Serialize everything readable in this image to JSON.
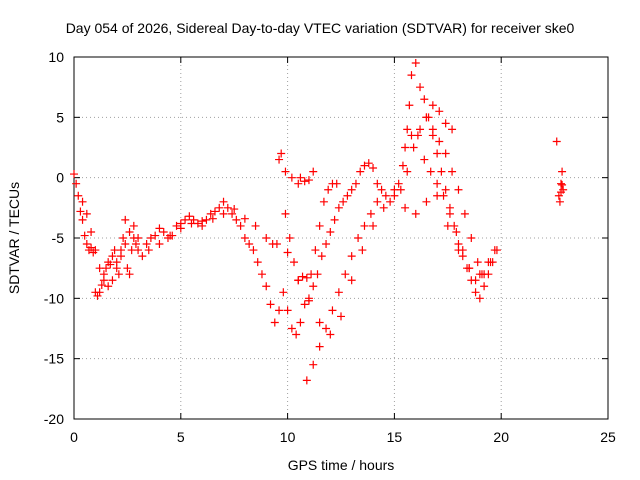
{
  "chart_data": {
    "type": "scatter",
    "title": "Day 054 of 2026, Sidereal Day-to-day VTEC variation (SDTVAR) for receiver ske0",
    "xlabel": "GPS time / hours",
    "ylabel": "SDTVAR / TECUs",
    "xlim": [
      0,
      25
    ],
    "ylim": [
      -20,
      10
    ],
    "xticks": [
      0,
      5,
      10,
      15,
      20,
      25
    ],
    "yticks": [
      -20,
      -15,
      -10,
      -5,
      0,
      5,
      10
    ],
    "xtick_labels": [
      "0",
      "5",
      "10",
      "15",
      "20",
      "25"
    ],
    "ytick_labels": [
      "-20",
      "-15",
      "-10",
      "-5",
      "0",
      "5",
      "10"
    ],
    "grid": true,
    "marker": "+",
    "series": [
      {
        "name": "SDTVAR",
        "color": "#ff0000",
        "x": [
          0.0,
          0.1,
          0.2,
          0.3,
          0.4,
          0.5,
          0.6,
          0.7,
          0.8,
          0.9,
          1.0,
          1.1,
          1.2,
          1.3,
          1.4,
          1.5,
          1.6,
          1.7,
          1.8,
          1.9,
          2.0,
          2.1,
          2.2,
          2.3,
          2.4,
          2.5,
          2.6,
          2.7,
          2.8,
          2.9,
          3.0,
          3.2,
          3.4,
          3.6,
          3.8,
          4.0,
          4.2,
          4.4,
          4.6,
          4.8,
          5.0,
          5.2,
          5.4,
          5.6,
          5.8,
          6.0,
          6.2,
          6.4,
          6.6,
          6.8,
          7.0,
          7.2,
          7.4,
          7.6,
          7.8,
          8.0,
          8.2,
          8.4,
          8.6,
          8.8,
          9.0,
          9.2,
          9.4,
          9.6,
          9.8,
          10.0,
          10.2,
          10.4,
          10.6,
          10.8,
          11.0,
          11.2,
          11.4,
          11.6,
          11.8,
          12.0,
          12.2,
          12.4,
          12.6,
          12.8,
          13.0,
          13.2,
          13.4,
          13.6,
          13.8,
          14.0,
          14.2,
          14.4,
          14.6,
          14.8,
          15.0,
          15.2,
          15.4,
          15.5,
          15.6,
          15.7,
          15.8,
          16.0,
          16.2,
          16.4,
          16.6,
          16.8,
          17.0,
          17.2,
          17.4,
          17.6,
          17.8,
          18.0,
          18.2,
          18.4,
          18.6,
          18.8,
          19.0,
          19.2,
          19.4,
          19.6,
          19.8,
          0.4,
          0.6,
          0.8,
          1.0,
          1.2,
          1.4,
          1.6,
          1.8,
          2.0,
          2.2,
          2.4,
          2.6,
          2.8,
          3.0,
          3.5,
          4.0,
          4.5,
          5.0,
          5.5,
          6.0,
          6.5,
          7.0,
          7.5,
          8.0,
          8.5,
          9.0,
          9.5,
          10.0,
          10.5,
          11.0,
          11.5,
          12.0,
          12.5,
          13.0,
          13.5,
          14.0,
          14.5,
          15.0,
          15.5,
          16.0,
          16.5,
          17.0,
          17.5,
          18.0,
          18.5,
          19.0,
          19.5,
          9.3,
          9.6,
          9.9,
          10.2,
          10.5,
          10.8,
          11.0,
          11.2,
          9.7,
          9.9,
          10.1,
          10.3,
          10.5,
          10.7,
          10.9,
          11.1,
          11.3,
          11.5,
          11.7,
          11.9,
          12.1,
          12.3,
          10.6,
          10.9,
          11.2,
          11.5,
          11.8,
          12.1,
          12.4,
          12.7,
          13.0,
          13.3,
          13.6,
          13.9,
          14.2,
          15.3,
          15.6,
          15.9,
          16.2,
          16.5,
          16.8,
          17.1,
          17.4,
          17.7,
          15.8,
          16.1,
          16.4,
          16.7,
          17.0,
          17.3,
          17.6,
          17.9,
          18.2,
          18.5,
          18.8,
          19.1,
          19.4,
          19.7,
          16.5,
          16.8,
          17.1,
          17.4,
          17.7,
          18.0,
          18.3,
          18.6,
          18.9,
          19.2,
          22.6,
          22.7,
          22.8,
          22.85,
          22.9,
          22.75,
          22.8,
          22.85
        ],
        "y": [
          0.3,
          -0.5,
          -1.5,
          -2.8,
          -3.5,
          -4.8,
          -5.5,
          -6.0,
          -5.8,
          -6.2,
          -9.5,
          -9.8,
          -9.5,
          -8.9,
          -8.0,
          -7.5,
          -7.0,
          -7.2,
          -6.5,
          -6.0,
          -7.5,
          -8.0,
          -6.5,
          -5.0,
          -3.5,
          -7.5,
          -8.0,
          -6.0,
          -5.0,
          -5.5,
          -6.0,
          -6.5,
          -5.5,
          -5.0,
          -4.8,
          -4.2,
          -4.5,
          -5.0,
          -4.8,
          -4.0,
          -3.8,
          -3.5,
          -3.2,
          -3.5,
          -3.8,
          -4.0,
          -3.5,
          -3.0,
          -2.8,
          -2.5,
          -2.0,
          -2.5,
          -3.0,
          -3.5,
          -4.0,
          -5.0,
          -5.5,
          -6.0,
          -7.0,
          -8.0,
          -9.0,
          -10.5,
          -12.0,
          -11.0,
          -9.5,
          -11.0,
          -12.5,
          -13.0,
          -12.0,
          -10.5,
          -10.0,
          -9.0,
          -8.0,
          -6.5,
          -5.5,
          -4.5,
          -3.5,
          -2.5,
          -2.0,
          -1.5,
          -1.0,
          -0.5,
          0.5,
          1.0,
          1.2,
          0.8,
          -0.5,
          -1.0,
          -1.5,
          -2.0,
          -1.5,
          -0.5,
          1.0,
          2.5,
          4.0,
          6.0,
          8.5,
          9.5,
          7.5,
          6.5,
          5.0,
          3.5,
          2.0,
          0.5,
          -1.0,
          -2.5,
          -4.0,
          -5.5,
          -6.5,
          -7.5,
          -8.5,
          -9.5,
          -10.0,
          -9.0,
          -8.0,
          -7.0,
          -6.0,
          -2.0,
          -3.0,
          -4.5,
          -6.0,
          -7.5,
          -8.5,
          -9.0,
          -8.5,
          -7.0,
          -6.0,
          -5.5,
          -4.5,
          -4.0,
          -5.0,
          -6.0,
          -5.5,
          -4.8,
          -4.2,
          -3.8,
          -3.6,
          -3.4,
          -3.0,
          -2.6,
          -3.4,
          -4.0,
          -5.0,
          -5.5,
          -6.2,
          -8.5,
          -10.2,
          -12.0,
          -13.0,
          -11.5,
          -8.5,
          -6.0,
          -4.0,
          -2.5,
          -1.0,
          -2.5,
          -3.0,
          -2.0,
          -1.5,
          -4.0,
          -6.0,
          -7.5,
          -8.0,
          -7.0,
          -5.5,
          1.5,
          0.5,
          0.0,
          -0.5,
          -0.3,
          -0.2,
          0.5,
          2.0,
          -3.0,
          -5.0,
          -7.0,
          -8.5,
          -8.2,
          -8.3,
          -8.0,
          -6.0,
          -4.0,
          -2.0,
          -1.0,
          -0.5,
          -0.5,
          0.0,
          -16.8,
          -15.5,
          -14.0,
          -12.5,
          -11.0,
          -9.5,
          -8.0,
          -6.5,
          -5.0,
          -4.0,
          -3.0,
          -2.0,
          -1.0,
          0.5,
          2.5,
          4.0,
          5.0,
          6.0,
          5.5,
          4.5,
          4.0,
          3.5,
          3.5,
          1.5,
          0.5,
          -0.5,
          -1.5,
          -3.0,
          -4.5,
          -6.0,
          -7.5,
          -8.5,
          -8.0,
          -7.0,
          -6.0,
          5.0,
          4.0,
          3.0,
          2.0,
          0.5,
          -1.0,
          -3.0,
          -5.0,
          -7.0,
          -8.0,
          3.0,
          -1.5,
          -0.5,
          0.5,
          -1.0,
          -2.0,
          -1.2,
          -0.6
        ]
      }
    ]
  }
}
